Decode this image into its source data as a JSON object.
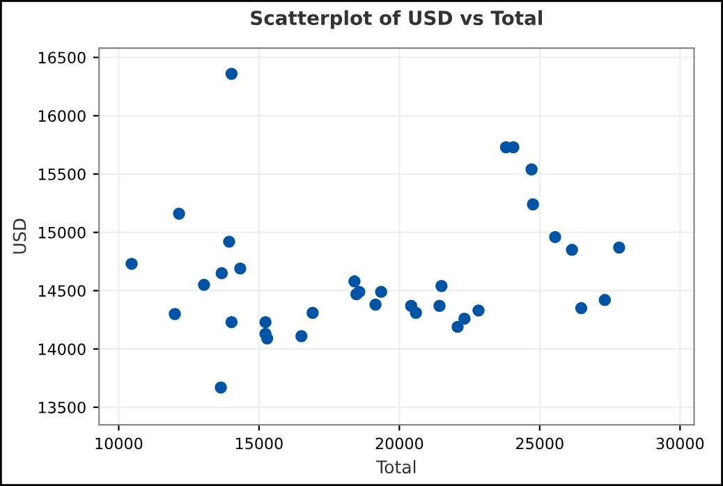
{
  "chart_data": {
    "type": "scatter",
    "title": "Scatterplot of USD vs Total",
    "xlabel": "Total",
    "ylabel": "USD",
    "x": [
      14020,
      10460,
      12150,
      13935,
      13670,
      14330,
      13040,
      12000,
      14020,
      13640,
      15230,
      15230,
      15290,
      16510,
      16910,
      18400,
      18470,
      18570,
      19150,
      19350,
      20420,
      20590,
      21430,
      21500,
      22075,
      22320,
      22820,
      23800,
      24060,
      24710,
      24760,
      25550,
      26150,
      27830,
      26480,
      27320
    ],
    "series": [
      {
        "color": "#0054a6",
        "values": [
          16360,
          14730,
          15160,
          14920,
          14650,
          14690,
          14550,
          14300,
          14230,
          13670,
          14230,
          14130,
          14090,
          14110,
          14310,
          14580,
          14470,
          14490,
          14380,
          14490,
          14370,
          14310,
          14370,
          14540,
          14190,
          14260,
          14330,
          15730,
          15730,
          15540,
          15240,
          14960,
          14850,
          14870,
          14350,
          14420
        ]
      }
    ],
    "xlim": [
      9300,
      30500
    ],
    "ylim": [
      13350,
      16580
    ],
    "xticks": [
      10000,
      15000,
      20000,
      25000,
      30000
    ],
    "yticks": [
      13500,
      14000,
      14500,
      15000,
      15500,
      16000,
      16500
    ],
    "grid": true,
    "marker": "circle"
  }
}
